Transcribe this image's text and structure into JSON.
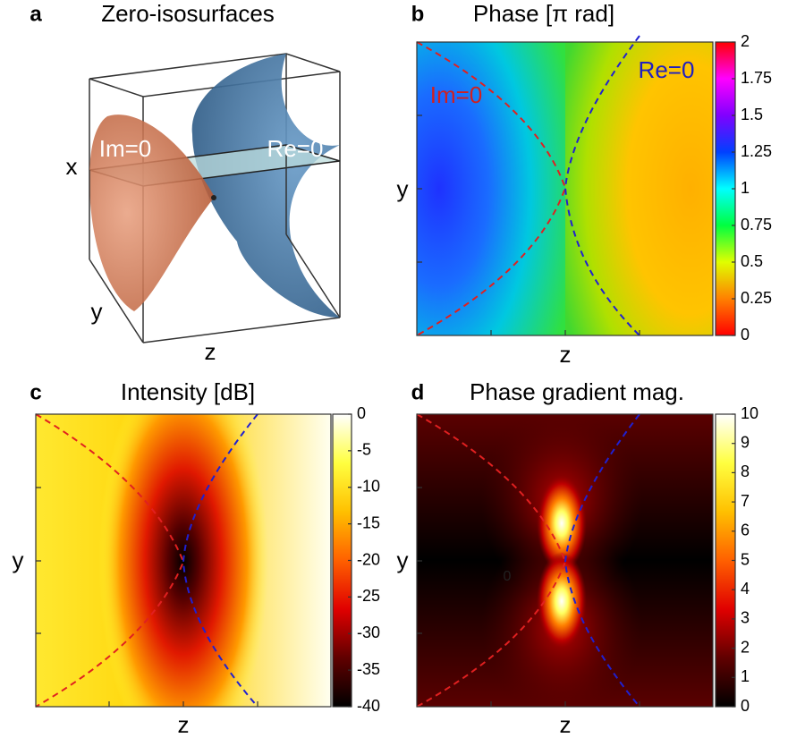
{
  "chart_data": [
    {
      "type": "isosurface",
      "label": "a",
      "title": "Zero-isosurfaces",
      "xlabel": "z",
      "ylabel": "y",
      "zlabel": "x",
      "annotations": [
        "Im=0",
        "Re=0"
      ]
    },
    {
      "type": "heatmap",
      "label": "b",
      "title": "Phase [π rad]",
      "xlabel": "z",
      "ylabel": "y",
      "annotations": [
        "Im=0",
        "Re=0"
      ],
      "colormap": "hsv",
      "clim": [
        0,
        2
      ],
      "cticks": [
        0,
        0.25,
        0.5,
        0.75,
        1,
        1.25,
        1.5,
        1.75,
        2
      ]
    },
    {
      "type": "heatmap",
      "label": "c",
      "title": "Intensity [dB]",
      "xlabel": "z",
      "ylabel": "y",
      "colormap": "hot",
      "clim": [
        -40,
        0
      ],
      "cticks": [
        0,
        -5,
        -10,
        -15,
        -20,
        -25,
        -30,
        -35,
        -40
      ]
    },
    {
      "type": "heatmap",
      "label": "d",
      "title": "Phase gradient mag.",
      "xlabel": "z",
      "ylabel": "y",
      "annotations": [
        "0"
      ],
      "colormap": "hot",
      "clim": [
        0,
        10
      ],
      "cticks": [
        0,
        1,
        2,
        3,
        4,
        5,
        6,
        7,
        8,
        9,
        10
      ]
    }
  ]
}
